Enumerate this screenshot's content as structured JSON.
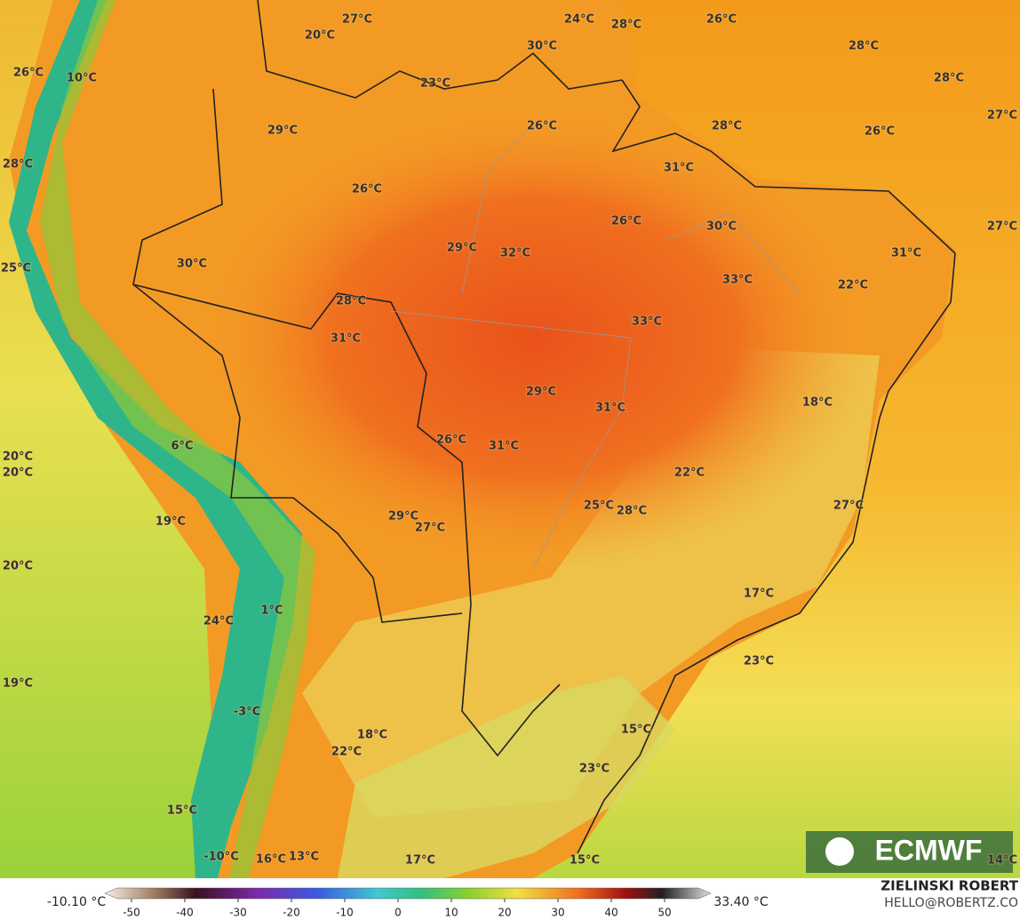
{
  "map": {
    "labels": [
      "27°C",
      "20°C",
      "24°C",
      "28°C",
      "26°C",
      "30°C",
      "28°C",
      "26°C",
      "10°C",
      "23°C",
      "28°C",
      "27°C",
      "29°C",
      "26°C",
      "28°C",
      "26°C",
      "28°C",
      "31°C",
      "26°C",
      "26°C",
      "30°C",
      "27°C",
      "29°C",
      "32°C",
      "31°C",
      "25°C",
      "30°C",
      "33°C",
      "22°C",
      "28°C",
      "33°C",
      "31°C",
      "29°C",
      "18°C",
      "31°C",
      "6°C",
      "26°C",
      "31°C",
      "20°C",
      "20°C",
      "22°C",
      "25°C",
      "28°C",
      "27°C",
      "29°C",
      "27°C",
      "19°C",
      "20°C",
      "17°C",
      "1°C",
      "24°C",
      "23°C",
      "19°C",
      "-3°C",
      "18°C",
      "22°C",
      "15°C",
      "23°C",
      "15°C",
      "-10°C",
      "16°C",
      "13°C",
      "17°C",
      "15°C",
      "14°C"
    ],
    "colorbar": {
      "min_label": "-10.10 °C",
      "max_label": "33.40 °C",
      "ticks": [
        -50,
        -40,
        -30,
        -20,
        -10,
        0,
        10,
        20,
        30,
        40,
        50
      ]
    },
    "logo": "ECMWF",
    "credits": {
      "author": "ZIELINSKI ROBERT",
      "email": "HELLO@ROBERTZ.CO"
    }
  }
}
